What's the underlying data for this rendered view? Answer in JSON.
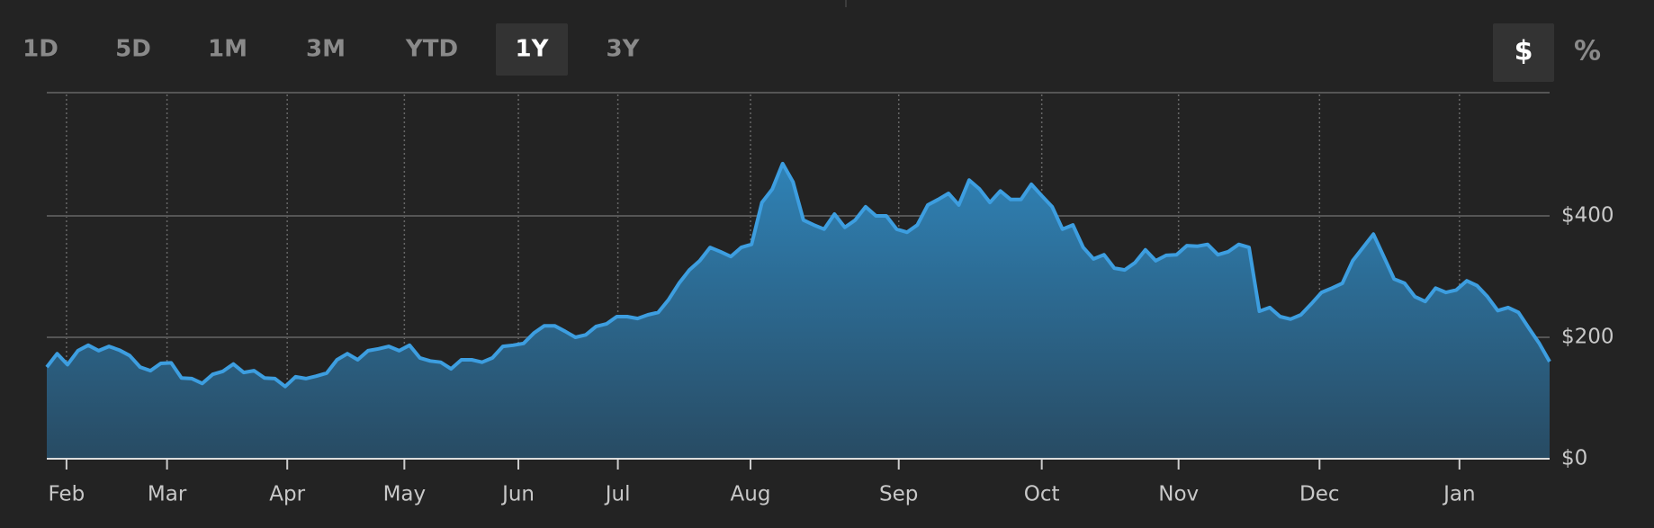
{
  "ui": {
    "ranges": [
      "1D",
      "5D",
      "1M",
      "3M",
      "YTD",
      "1Y",
      "3Y"
    ],
    "active_range": 5,
    "units": [
      "$",
      "%"
    ],
    "active_unit": 0
  },
  "chart_data": {
    "type": "area",
    "color": "#3d9ee0",
    "values": [
      151,
      173,
      155,
      178,
      187,
      178,
      185,
      179,
      170,
      151,
      145,
      157,
      158,
      133,
      132,
      124,
      139,
      144,
      156,
      142,
      145,
      133,
      132,
      119,
      135,
      132,
      136,
      141,
      163,
      173,
      163,
      178,
      181,
      185,
      178,
      187,
      166,
      161,
      159,
      148,
      163,
      163,
      159,
      166,
      185,
      187,
      190,
      207,
      219,
      219,
      210,
      200,
      204,
      218,
      222,
      234,
      234,
      231,
      237,
      241,
      262,
      289,
      311,
      326,
      348,
      341,
      333,
      348,
      353,
      422,
      444,
      486,
      456,
      393,
      385,
      378,
      403,
      381,
      393,
      415,
      400,
      400,
      378,
      373,
      385,
      418,
      427,
      437,
      418,
      459,
      444,
      422,
      441,
      427,
      427,
      452,
      433,
      415,
      378,
      385,
      348,
      329,
      336,
      314,
      311,
      323,
      344,
      326,
      335,
      336,
      351,
      350,
      353,
      336,
      341,
      353,
      348,
      243,
      249,
      234,
      230,
      237,
      255,
      274,
      281,
      289,
      326,
      348,
      370,
      333,
      296,
      289,
      267,
      259,
      281,
      274,
      278,
      293,
      285,
      267,
      244,
      249,
      241,
      215,
      190,
      160
    ],
    "xlim": [
      0,
      145
    ],
    "xticks": [
      {
        "value": 1.9,
        "label": "Feb"
      },
      {
        "value": 11.6,
        "label": "Mar"
      },
      {
        "value": 23.2,
        "label": "Apr"
      },
      {
        "value": 34.5,
        "label": "May"
      },
      {
        "value": 45.5,
        "label": "Jun"
      },
      {
        "value": 55.1,
        "label": "Jul"
      },
      {
        "value": 67.9,
        "label": "Aug"
      },
      {
        "value": 82.2,
        "label": "Sep"
      },
      {
        "value": 96.0,
        "label": "Oct"
      },
      {
        "value": 109.2,
        "label": "Nov"
      },
      {
        "value": 122.8,
        "label": "Dec"
      },
      {
        "value": 136.3,
        "label": "Jan"
      }
    ],
    "ylim": [
      0,
      600
    ],
    "yticks": [
      {
        "value": 0,
        "label": "$0"
      },
      {
        "value": 200,
        "label": "$200"
      },
      {
        "value": 400,
        "label": "$400"
      }
    ],
    "grid": true
  }
}
